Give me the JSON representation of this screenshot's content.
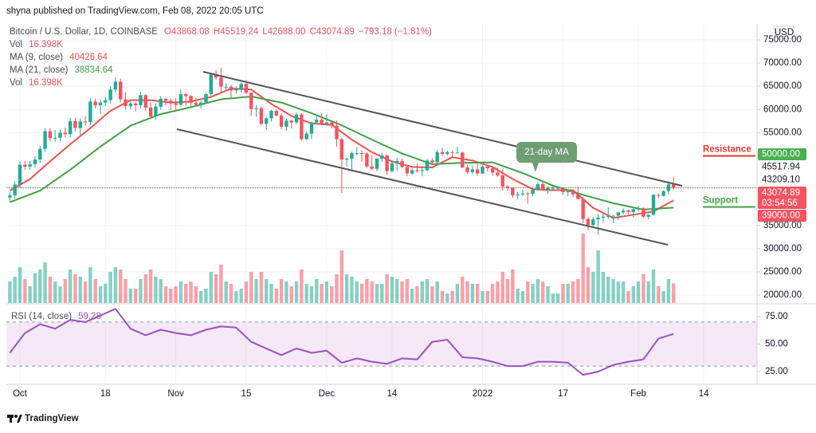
{
  "header": {
    "published": "shyna published on TradingView.com, Feb 08, 2022 20:05 UTC"
  },
  "chart_data": {
    "type": "candlestick",
    "symbol": "Bitcoin / U.S. Dollar, 1D, COINBASE",
    "ohlc_legend": [
      "O43868.08",
      "H45519.24",
      "L42688.00",
      "C43074.89",
      "−793.18 (−1.81%)"
    ],
    "currency": "USD",
    "up_color": "#22ab94",
    "down_color": "#f7525f",
    "xlim": [
      -0.7,
      148.6
    ],
    "xticks": [
      {
        "value": 2,
        "label": "Oct"
      },
      {
        "value": 19,
        "label": "18"
      },
      {
        "value": 33,
        "label": "Nov"
      },
      {
        "value": 47,
        "label": "15"
      },
      {
        "value": 63,
        "label": "Dec"
      },
      {
        "value": 76,
        "label": "14"
      },
      {
        "value": 94,
        "label": "2022"
      },
      {
        "value": 110,
        "label": "17"
      },
      {
        "value": 125,
        "label": "Feb"
      },
      {
        "value": 138,
        "label": "14"
      }
    ],
    "ylim": [
      18280,
      78440
    ],
    "yticks": [
      {
        "value": 75000,
        "label": "75000.00"
      },
      {
        "value": 70000,
        "label": "70000.00"
      },
      {
        "value": 65000,
        "label": "65000.00"
      },
      {
        "value": 60000,
        "label": "60000.00"
      },
      {
        "value": 55000,
        "label": "55000.00"
      },
      {
        "value": 35000,
        "label": "35000.00"
      },
      {
        "value": 30000,
        "label": "30000.00"
      },
      {
        "value": 25000,
        "label": "25000.00"
      },
      {
        "value": 20000,
        "label": "20000.00"
      }
    ],
    "grid": true,
    "candles": [
      [
        41000,
        42200,
        40300,
        41500
      ],
      [
        41500,
        44500,
        40800,
        43800
      ],
      [
        43800,
        48800,
        43100,
        48100
      ],
      [
        48100,
        48900,
        47000,
        47700
      ],
      [
        47700,
        48900,
        47000,
        48200
      ],
      [
        48200,
        49900,
        47500,
        49200
      ],
      [
        49200,
        52200,
        48500,
        51500
      ],
      [
        51500,
        56000,
        50800,
        55300
      ],
      [
        55300,
        56000,
        53100,
        53800
      ],
      [
        53800,
        55600,
        53100,
        53900
      ],
      [
        53900,
        55700,
        53200,
        55000
      ],
      [
        55000,
        56100,
        54000,
        54700
      ],
      [
        54700,
        58200,
        54000,
        57500
      ],
      [
        57500,
        58200,
        55300,
        56000
      ],
      [
        56000,
        58100,
        54500,
        57400
      ],
      [
        57400,
        58500,
        56600,
        57300
      ],
      [
        57300,
        62400,
        56600,
        61700
      ],
      [
        61700,
        62300,
        60200,
        60900
      ],
      [
        60900,
        62200,
        59000,
        61500
      ],
      [
        61500,
        62700,
        60800,
        62000
      ],
      [
        62000,
        65000,
        61300,
        64300
      ],
      [
        64300,
        66900,
        63600,
        66000
      ],
      [
        66000,
        66700,
        61500,
        62200
      ],
      [
        62200,
        63700,
        60000,
        60700
      ],
      [
        60700,
        62000,
        60000,
        61300
      ],
      [
        61300,
        61600,
        59600,
        60900
      ],
      [
        60900,
        63800,
        60200,
        63100
      ],
      [
        63100,
        63300,
        59700,
        60400
      ],
      [
        60400,
        61500,
        58000,
        58500
      ],
      [
        58500,
        61300,
        57800,
        60600
      ],
      [
        60600,
        62900,
        60000,
        62300
      ],
      [
        62300,
        62500,
        60800,
        61900
      ],
      [
        61900,
        62400,
        59900,
        61300
      ],
      [
        61300,
        62400,
        59500,
        61000
      ],
      [
        61000,
        64300,
        60600,
        63300
      ],
      [
        63300,
        63600,
        60800,
        62900
      ],
      [
        62900,
        63100,
        60700,
        61400
      ],
      [
        61400,
        62600,
        60700,
        61000
      ],
      [
        61000,
        61800,
        60200,
        61500
      ],
      [
        61500,
        63600,
        61400,
        63300
      ],
      [
        63300,
        67800,
        63000,
        67500
      ],
      [
        67500,
        68500,
        66400,
        66900
      ],
      [
        66900,
        69000,
        63400,
        64900
      ],
      [
        64900,
        65600,
        64100,
        64900
      ],
      [
        64900,
        65300,
        62300,
        64100
      ],
      [
        64100,
        65000,
        63400,
        64400
      ],
      [
        64400,
        65900,
        63600,
        65500
      ],
      [
        65500,
        66300,
        63300,
        63600
      ],
      [
        63600,
        63700,
        58600,
        60100
      ],
      [
        60100,
        60900,
        58400,
        60300
      ],
      [
        60300,
        60600,
        56500,
        56900
      ],
      [
        56900,
        58400,
        55600,
        58100
      ],
      [
        58100,
        59900,
        57400,
        59700
      ],
      [
        59700,
        60000,
        58500,
        58700
      ],
      [
        58700,
        59200,
        55700,
        56300
      ],
      [
        56300,
        58000,
        55400,
        57600
      ],
      [
        57600,
        57800,
        55900,
        57200
      ],
      [
        57200,
        59400,
        56800,
        58900
      ],
      [
        58900,
        59200,
        53300,
        53600
      ],
      [
        53600,
        55300,
        53400,
        54800
      ],
      [
        54800,
        57400,
        53600,
        57200
      ],
      [
        57200,
        58900,
        56800,
        57800
      ],
      [
        57800,
        59200,
        56600,
        56900
      ],
      [
        56900,
        59000,
        56500,
        57200
      ],
      [
        57200,
        57400,
        55900,
        56500
      ],
      [
        56500,
        57600,
        52000,
        53600
      ],
      [
        53600,
        53900,
        42000,
        49200
      ],
      [
        49200,
        49700,
        47700,
        49400
      ],
      [
        49400,
        50900,
        47100,
        50600
      ],
      [
        50600,
        51900,
        50100,
        50600
      ],
      [
        50600,
        51200,
        48700,
        50500
      ],
      [
        50500,
        50800,
        47400,
        47700
      ],
      [
        47700,
        50100,
        46900,
        47200
      ],
      [
        47200,
        49500,
        46700,
        49400
      ],
      [
        49400,
        50700,
        48700,
        50100
      ],
      [
        50100,
        50300,
        45900,
        46700
      ],
      [
        46700,
        48700,
        46400,
        48400
      ],
      [
        48400,
        49500,
        46700,
        48900
      ],
      [
        48900,
        49400,
        47300,
        47600
      ],
      [
        47600,
        48000,
        45600,
        46200
      ],
      [
        46200,
        47300,
        45900,
        46900
      ],
      [
        46900,
        48300,
        46400,
        46700
      ],
      [
        46700,
        47500,
        45600,
        46900
      ],
      [
        46900,
        49300,
        46700,
        49000
      ],
      [
        49000,
        49500,
        48300,
        48600
      ],
      [
        48600,
        51300,
        48100,
        50800
      ],
      [
        50800,
        51800,
        50000,
        50400
      ],
      [
        50400,
        51100,
        50100,
        50800
      ],
      [
        50800,
        51200,
        49700,
        50700
      ],
      [
        50700,
        52000,
        50500,
        50700
      ],
      [
        50700,
        50900,
        47400,
        47500
      ],
      [
        47500,
        48100,
        46100,
        46500
      ],
      [
        46500,
        47900,
        46100,
        47100
      ],
      [
        47100,
        48500,
        45700,
        46200
      ],
      [
        46200,
        47900,
        46200,
        47700
      ],
      [
        47700,
        47900,
        46700,
        47300
      ],
      [
        47300,
        47500,
        45700,
        46400
      ],
      [
        46400,
        47500,
        45500,
        45800
      ],
      [
        45800,
        47000,
        42500,
        43400
      ],
      [
        43400,
        43700,
        42500,
        43100
      ],
      [
        43100,
        43100,
        40900,
        41500
      ],
      [
        41500,
        42300,
        40600,
        41700
      ],
      [
        41700,
        42700,
        41300,
        41900
      ],
      [
        41900,
        42200,
        39700,
        41800
      ],
      [
        41800,
        43000,
        41300,
        42700
      ],
      [
        42700,
        44300,
        42500,
        43900
      ],
      [
        43900,
        44400,
        42400,
        42600
      ],
      [
        42600,
        43400,
        41800,
        43100
      ],
      [
        43100,
        43700,
        42600,
        43100
      ],
      [
        43100,
        43500,
        42600,
        43100
      ],
      [
        43100,
        43200,
        41600,
        42200
      ],
      [
        42200,
        42700,
        41300,
        42400
      ],
      [
        42400,
        42500,
        41100,
        41700
      ],
      [
        41700,
        43400,
        40600,
        40700
      ],
      [
        40700,
        41100,
        35500,
        36400
      ],
      [
        36400,
        36800,
        34000,
        35100
      ],
      [
        35100,
        36800,
        34600,
        36300
      ],
      [
        36300,
        37500,
        33000,
        36700
      ],
      [
        36700,
        37500,
        35700,
        36900
      ],
      [
        36900,
        38900,
        36400,
        37000
      ],
      [
        37000,
        37200,
        35500,
        37100
      ],
      [
        37100,
        38000,
        36200,
        37800
      ],
      [
        37800,
        38700,
        37400,
        38200
      ],
      [
        38200,
        38400,
        37400,
        37900
      ],
      [
        37900,
        38700,
        36700,
        38500
      ],
      [
        38500,
        39200,
        38000,
        38700
      ],
      [
        38700,
        38900,
        36600,
        36900
      ],
      [
        36900,
        37400,
        36300,
        37300
      ],
      [
        37300,
        41800,
        37100,
        41600
      ],
      [
        41600,
        41900,
        40900,
        41400
      ],
      [
        41400,
        42600,
        41200,
        42400
      ],
      [
        42400,
        44500,
        41700,
        43868.08
      ],
      [
        43868.08,
        45519.24,
        42688,
        43074.89
      ]
    ],
    "volume": {
      "name": "Vol",
      "value_label": "16.398K",
      "ylim": [
        0,
        233
      ],
      "values": [
        18,
        22,
        30,
        20,
        14,
        25,
        28,
        34,
        22,
        18,
        14,
        20,
        28,
        24,
        22,
        18,
        30,
        20,
        14,
        16,
        26,
        30,
        28,
        20,
        12,
        12,
        20,
        24,
        28,
        22,
        20,
        14,
        12,
        14,
        18,
        16,
        18,
        14,
        10,
        12,
        26,
        24,
        32,
        18,
        16,
        10,
        12,
        18,
        26,
        20,
        26,
        20,
        16,
        12,
        20,
        18,
        14,
        18,
        28,
        16,
        14,
        20,
        16,
        18,
        14,
        24,
        44,
        24,
        22,
        18,
        16,
        20,
        18,
        16,
        16,
        24,
        22,
        20,
        18,
        20,
        12,
        14,
        18,
        20,
        14,
        18,
        10,
        8,
        10,
        16,
        22,
        18,
        16,
        16,
        10,
        10,
        16,
        18,
        26,
        20,
        28,
        12,
        10,
        18,
        16,
        20,
        18,
        14,
        8,
        8,
        16,
        16,
        18,
        20,
        58,
        30,
        26,
        44,
        26,
        22,
        20,
        18,
        18,
        10,
        14,
        18,
        24,
        18,
        28,
        14,
        10,
        20,
        16.398
      ]
    },
    "series": [
      {
        "name": "MA (9, close)",
        "color": "#f0514f",
        "x": [
          0,
          4,
          8,
          12,
          16,
          20,
          24,
          28,
          32,
          36,
          40,
          44,
          48,
          52,
          56,
          60,
          64,
          68,
          72,
          76,
          80,
          84,
          88,
          92,
          96,
          100,
          104,
          108,
          112,
          116,
          120,
          124,
          128,
          132
        ],
        "values": [
          42500,
          45000,
          48800,
          52500,
          56000,
          59700,
          62000,
          62000,
          61500,
          61700,
          62700,
          64500,
          64300,
          61200,
          58600,
          57000,
          56700,
          53500,
          50800,
          48800,
          47600,
          47500,
          49700,
          49000,
          47600,
          45000,
          42800,
          42600,
          42600,
          38800,
          36600,
          37300,
          38000,
          40426.64
        ]
      },
      {
        "name": "MA (21, close)",
        "color": "#43a047",
        "x": [
          0,
          6,
          12,
          18,
          24,
          30,
          36,
          42,
          48,
          54,
          60,
          66,
          72,
          78,
          84,
          90,
          96,
          102,
          108,
          114,
          120,
          126,
          132
        ],
        "values": [
          40000,
          42500,
          47000,
          52000,
          56500,
          59000,
          60500,
          62200,
          62800,
          61500,
          59200,
          56600,
          53500,
          50500,
          48200,
          48500,
          48600,
          46300,
          43600,
          41600,
          39800,
          38400,
          38834.64
        ]
      }
    ],
    "rsi": {
      "name": "RSI (14, close)",
      "color": "#9c4fc4",
      "ylim": [
        13.4,
        84.4
      ],
      "band": [
        30,
        70
      ],
      "yticks": [
        {
          "value": 75,
          "label": "75.00"
        },
        {
          "value": 50,
          "label": "50.00"
        },
        {
          "value": 25,
          "label": "25.00"
        }
      ],
      "x": [
        0,
        3,
        6,
        9,
        12,
        15,
        18,
        21,
        24,
        27,
        30,
        33,
        36,
        39,
        42,
        45,
        48,
        51,
        54,
        57,
        60,
        63,
        66,
        69,
        72,
        75,
        78,
        81,
        84,
        87,
        90,
        93,
        96,
        99,
        102,
        105,
        108,
        111,
        114,
        117,
        120,
        123,
        126,
        129,
        132
      ],
      "values": [
        42,
        60,
        68,
        64,
        72,
        70,
        76,
        82,
        64,
        58,
        63,
        60,
        58,
        63,
        66,
        65,
        52,
        46,
        40,
        46,
        42,
        44,
        33,
        37,
        34,
        32,
        37,
        36,
        52,
        54,
        38,
        37,
        34,
        30,
        30,
        34,
        34,
        33,
        22,
        25,
        31,
        34,
        36,
        55,
        59.28
      ]
    },
    "price_labels": [
      {
        "value": 50000,
        "label": "50000.00",
        "color": "#4caf50",
        "text_color": "#ffffff"
      },
      {
        "value": 45517.94,
        "label": "45517.94",
        "color": "#ffffff",
        "text_color": "#131722"
      },
      {
        "value": 43209.1,
        "label": "43209.10",
        "color": "#ffffff",
        "text_color": "#131722",
        "line": "solid",
        "line_color": "#a5d6a7"
      },
      {
        "value": 43074.89,
        "label": "43074.89",
        "sub": "03:54:56",
        "color": "#f7525f",
        "text_color": "#ffffff",
        "line": "dotted",
        "line_color": "#f7525f"
      },
      {
        "value": 39000,
        "label": "39000.00",
        "color": "#f7525f",
        "text_color": "#ffffff"
      }
    ],
    "annotations": [
      {
        "text": "Resistance",
        "value": 50000,
        "color": "#e53935"
      },
      {
        "text": "Support",
        "value": 39000,
        "color": "#43a047"
      },
      {
        "text": "21-day MA",
        "color": "#6e9e72"
      }
    ]
  },
  "footer": {
    "brand": "TradingView"
  }
}
